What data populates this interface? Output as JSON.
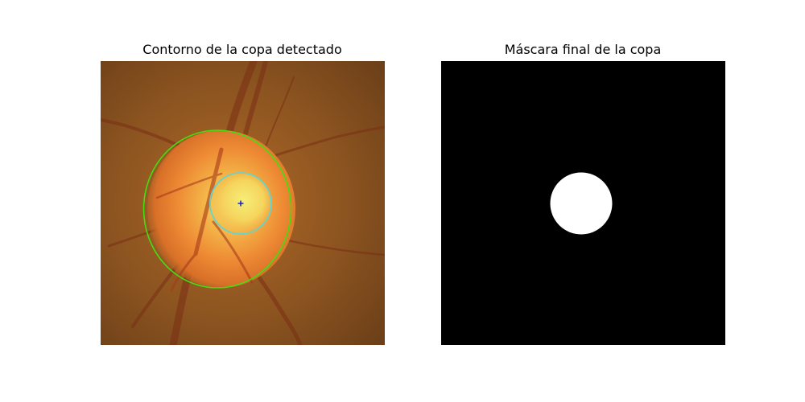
{
  "figure": {
    "left_panel": {
      "title": "Contorno de la copa detectado",
      "image": "fundus-photograph-optic-disc",
      "contours": [
        {
          "label": "disc",
          "color": "#44dd11"
        },
        {
          "label": "cup",
          "color": "#5fd6d0"
        }
      ],
      "center_marker_color": "#1020c8"
    },
    "right_panel": {
      "title": "Máscara final de la copa",
      "image": "binary-cup-mask",
      "background_color": "#000000",
      "mask_color": "#ffffff"
    }
  }
}
